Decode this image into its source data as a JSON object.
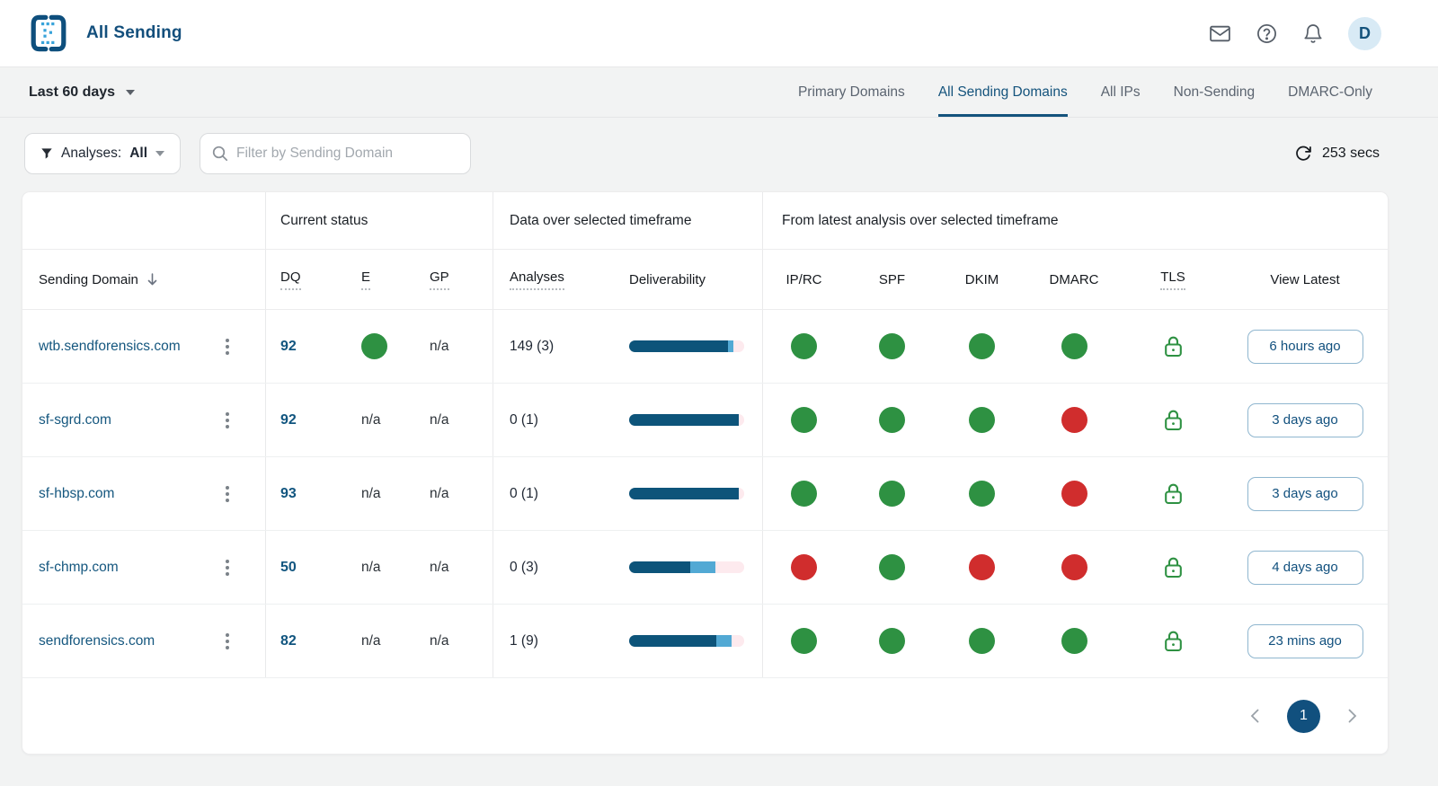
{
  "header": {
    "app_title": "All Sending",
    "avatar_initial": "D"
  },
  "nav": {
    "timeframe": "Last 60 days",
    "tabs": [
      {
        "label": "Primary Domains",
        "active": false
      },
      {
        "label": "All Sending Domains",
        "active": true
      },
      {
        "label": "All IPs",
        "active": false
      },
      {
        "label": "Non-Sending",
        "active": false
      },
      {
        "label": "DMARC-Only",
        "active": false
      }
    ]
  },
  "filters": {
    "analyses_label": "Analyses:",
    "analyses_value": "All",
    "search_placeholder": "Filter by Sending Domain",
    "refresh_countdown": "253 secs"
  },
  "table": {
    "group_headers": [
      {
        "label": "",
        "span": 1
      },
      {
        "label": "Current status",
        "span": 3
      },
      {
        "label": "Data over selected timeframe",
        "span": 2
      },
      {
        "label": "From latest analysis over selected timeframe",
        "span": 6
      }
    ],
    "columns": [
      "Sending Domain",
      "DQ",
      "E",
      "GP",
      "Analyses",
      "Deliverability",
      "IP/RC",
      "SPF",
      "DKIM",
      "DMARC",
      "TLS",
      "View Latest"
    ],
    "dotted_tooltip_columns": [
      1,
      2,
      3,
      4,
      10
    ],
    "rows": [
      {
        "domain": "wtb.sendforensics.com",
        "dq": "92",
        "e": "green",
        "gp": "n/a",
        "analyses": "149 (3)",
        "deliverability": [
          86,
          5,
          9
        ],
        "ip_rc": "green",
        "spf": "green",
        "dkim": "green",
        "dmarc": "green",
        "tls": "lock",
        "view_latest": "6 hours ago"
      },
      {
        "domain": "sf-sgrd.com",
        "dq": "92",
        "e": "n/a",
        "gp": "n/a",
        "analyses": "0 (1)",
        "deliverability": [
          95,
          0,
          5
        ],
        "ip_rc": "green",
        "spf": "green",
        "dkim": "green",
        "dmarc": "red",
        "tls": "lock",
        "view_latest": "3 days ago"
      },
      {
        "domain": "sf-hbsp.com",
        "dq": "93",
        "e": "n/a",
        "gp": "n/a",
        "analyses": "0 (1)",
        "deliverability": [
          95,
          0,
          5
        ],
        "ip_rc": "green",
        "spf": "green",
        "dkim": "green",
        "dmarc": "red",
        "tls": "lock",
        "view_latest": "3 days ago"
      },
      {
        "domain": "sf-chmp.com",
        "dq": "50",
        "e": "n/a",
        "gp": "n/a",
        "analyses": "0 (3)",
        "deliverability": [
          53,
          22,
          25
        ],
        "ip_rc": "red",
        "spf": "green",
        "dkim": "red",
        "dmarc": "red",
        "tls": "lock",
        "view_latest": "4 days ago"
      },
      {
        "domain": "sendforensics.com",
        "dq": "82",
        "e": "n/a",
        "gp": "n/a",
        "analyses": "1 (9)",
        "deliverability": [
          76,
          13,
          11
        ],
        "ip_rc": "green",
        "spf": "green",
        "dkim": "green",
        "dmarc": "green",
        "tls": "lock",
        "view_latest": "23 mins ago"
      }
    ]
  },
  "pagination": {
    "current_page": "1"
  },
  "colors": {
    "accent": "#11507e",
    "status_green": "#2e9142",
    "status_red": "#d02d2d",
    "bar_dark": "#0d547a",
    "bar_light": "#52a9d4",
    "bar_pink": "#fdeaee"
  }
}
